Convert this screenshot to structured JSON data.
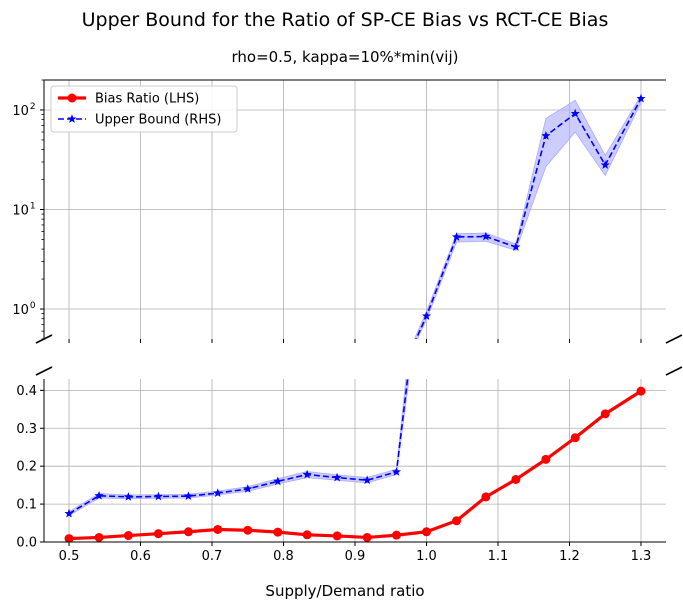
{
  "chart_data": {
    "type": "line",
    "title": "Upper Bound for the Ratio of SP-CE Bias vs RCT-CE Bias",
    "subtitle": "rho=0.5, kappa=10%*min(vij)",
    "xlabel": "Supply/Demand ratio",
    "ylabel": "",
    "x": [
      0.5,
      0.542,
      0.583,
      0.625,
      0.667,
      0.708,
      0.75,
      0.792,
      0.833,
      0.875,
      0.917,
      0.958,
      1.0,
      1.042,
      1.083,
      1.125,
      1.167,
      1.208,
      1.25,
      1.3
    ],
    "x_ticks": [
      "0.5",
      "0.6",
      "0.7",
      "0.8",
      "0.9",
      "1.0",
      "1.1",
      "1.2",
      "1.3"
    ],
    "xlim": [
      0.465,
      1.335
    ],
    "grid": true,
    "legend_position": "top-left",
    "panels": {
      "top": {
        "yscale": "log",
        "ylim": [
          0.5,
          200
        ],
        "y_ticks": [
          "10^0",
          "10^1",
          "10^2"
        ]
      },
      "bottom": {
        "yscale": "linear",
        "ylim": [
          0,
          0.43
        ],
        "y_ticks": [
          "0.0",
          "0.1",
          "0.2",
          "0.3",
          "0.4"
        ]
      }
    },
    "series": [
      {
        "name": "Bias Ratio (LHS)",
        "color": "#ff0000",
        "style": "solid",
        "marker": "circle",
        "values": [
          0.009,
          0.012,
          0.017,
          0.022,
          0.027,
          0.033,
          0.031,
          0.026,
          0.019,
          0.016,
          0.012,
          0.018,
          0.027,
          0.056,
          0.119,
          0.165,
          0.218,
          0.275,
          0.338,
          0.398
        ]
      },
      {
        "name": "Upper Bound (RHS)",
        "color": "#0000ff",
        "style": "dashed",
        "marker": "star",
        "band_color": "#aaaaff",
        "values": [
          0.075,
          0.122,
          0.119,
          0.12,
          0.121,
          0.129,
          0.14,
          0.16,
          0.178,
          0.17,
          0.163,
          0.185,
          0.85,
          5.3,
          5.35,
          4.2,
          55,
          92,
          28,
          130
        ],
        "lower": [
          0.07,
          0.116,
          0.114,
          0.115,
          0.116,
          0.124,
          0.134,
          0.153,
          0.17,
          0.163,
          0.156,
          0.178,
          0.78,
          4.7,
          4.8,
          3.9,
          27,
          60,
          22,
          118
        ],
        "upper": [
          0.08,
          0.128,
          0.124,
          0.125,
          0.126,
          0.134,
          0.146,
          0.167,
          0.186,
          0.177,
          0.17,
          0.192,
          0.95,
          5.7,
          5.8,
          4.5,
          82,
          125,
          35,
          140
        ]
      }
    ]
  }
}
